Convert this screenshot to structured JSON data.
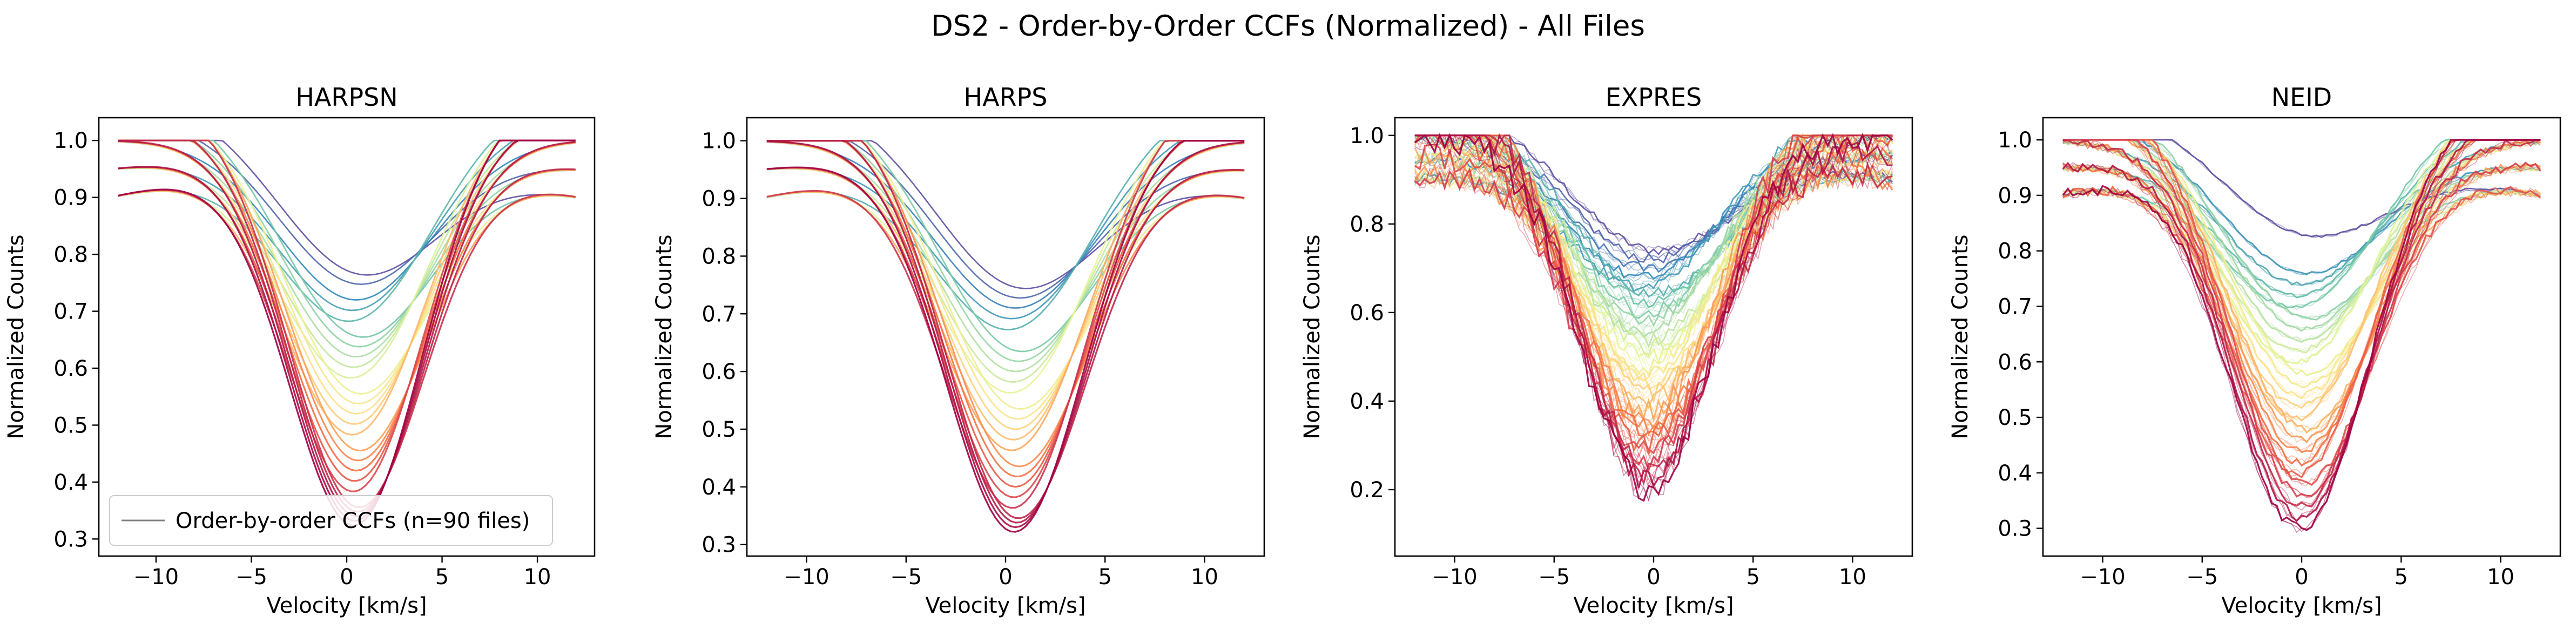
{
  "figure_title": "DS2 - Order-by-Order CCFs (Normalized) - All Files",
  "chart_data": [
    {
      "type": "line",
      "title": "HARPSN",
      "xlabel": "Velocity [km/s]",
      "ylabel": "Normalized Counts",
      "xlim": [
        -13,
        13
      ],
      "ylim": [
        0.27,
        1.04
      ],
      "xticks": [
        -10,
        -5,
        0,
        5,
        10
      ],
      "yticks": [
        0.3,
        0.4,
        0.5,
        0.6,
        0.7,
        0.8,
        0.9,
        1.0
      ],
      "ytick_labels": [
        "0.3",
        "0.4",
        "0.5",
        "0.6",
        "0.7",
        "0.8",
        "0.9",
        "1.0"
      ],
      "x_range": [
        -12,
        12
      ],
      "center_velocity": 0.5,
      "legend": {
        "label": "Order-by-order CCFs (n=90 files)",
        "loc": "lower left"
      },
      "line_depths": [
        0.77,
        0.75,
        0.72,
        0.7,
        0.68,
        0.66,
        0.64,
        0.62,
        0.6,
        0.58,
        0.56,
        0.54,
        0.52,
        0.5,
        0.48,
        0.46,
        0.44,
        0.42,
        0.4,
        0.38,
        0.36,
        0.35,
        0.34,
        0.33,
        0.32
      ],
      "noise": 0.0,
      "grid": false
    },
    {
      "type": "line",
      "title": "HARPS",
      "xlabel": "Velocity [km/s]",
      "ylabel": "Normalized Counts",
      "xlim": [
        -13,
        13
      ],
      "ylim": [
        0.28,
        1.04
      ],
      "xticks": [
        -10,
        -5,
        0,
        5,
        10
      ],
      "yticks": [
        0.3,
        0.4,
        0.5,
        0.6,
        0.7,
        0.8,
        0.9,
        1.0
      ],
      "ytick_labels": [
        "0.3",
        "0.4",
        "0.5",
        "0.6",
        "0.7",
        "0.8",
        "0.9",
        "1.0"
      ],
      "x_range": [
        -12,
        12
      ],
      "center_velocity": 0.5,
      "line_depths": [
        0.75,
        0.73,
        0.71,
        0.69,
        0.67,
        0.64,
        0.62,
        0.6,
        0.58,
        0.56,
        0.54,
        0.52,
        0.5,
        0.48,
        0.46,
        0.44,
        0.42,
        0.4,
        0.38,
        0.36,
        0.35,
        0.34,
        0.33,
        0.32
      ],
      "noise": 0.0,
      "grid": false
    },
    {
      "type": "line",
      "title": "EXPRES",
      "xlabel": "Velocity [km/s]",
      "ylabel": "Normalized Counts",
      "xlim": [
        -13,
        13
      ],
      "ylim": [
        0.05,
        1.04
      ],
      "xticks": [
        -10,
        -5,
        0,
        5,
        10
      ],
      "yticks": [
        0.2,
        0.4,
        0.6,
        0.8,
        1.0
      ],
      "ytick_labels": [
        "0.2",
        "0.4",
        "0.6",
        "0.8",
        "1.0"
      ],
      "x_range": [
        -12,
        12
      ],
      "center_velocity": -0.3,
      "line_depths": [
        0.74,
        0.72,
        0.7,
        0.68,
        0.66,
        0.64,
        0.62,
        0.6,
        0.58,
        0.56,
        0.54,
        0.52,
        0.5,
        0.48,
        0.46,
        0.44,
        0.42,
        0.4,
        0.38,
        0.36,
        0.34,
        0.32,
        0.3,
        0.28,
        0.26,
        0.24,
        0.22,
        0.2
      ],
      "noise": 0.06,
      "grid": false
    },
    {
      "type": "line",
      "title": "NEID",
      "xlabel": "Velocity [km/s]",
      "ylabel": "Normalized Counts",
      "xlim": [
        -13,
        13
      ],
      "ylim": [
        0.25,
        1.04
      ],
      "xticks": [
        -10,
        -5,
        0,
        5,
        10
      ],
      "yticks": [
        0.3,
        0.4,
        0.5,
        0.6,
        0.7,
        0.8,
        0.9,
        1.0
      ],
      "ytick_labels": [
        "0.3",
        "0.4",
        "0.5",
        "0.6",
        "0.7",
        "0.8",
        "0.9",
        "1.0"
      ],
      "x_range": [
        -12,
        12
      ],
      "center_velocity": 0.0,
      "line_depths": [
        0.83,
        0.76,
        0.74,
        0.72,
        0.7,
        0.68,
        0.66,
        0.64,
        0.62,
        0.6,
        0.58,
        0.56,
        0.54,
        0.52,
        0.5,
        0.48,
        0.46,
        0.44,
        0.42,
        0.4,
        0.38,
        0.36,
        0.34,
        0.32,
        0.3
      ],
      "noise": 0.02,
      "grid": false
    }
  ],
  "colormap": [
    "#9e0142",
    "#d53e4f",
    "#f46d43",
    "#fdae61",
    "#fee08b",
    "#e6f598",
    "#abdda4",
    "#66c2a5",
    "#3288bd",
    "#5e4fa2"
  ],
  "legend_line_color": "#808080"
}
